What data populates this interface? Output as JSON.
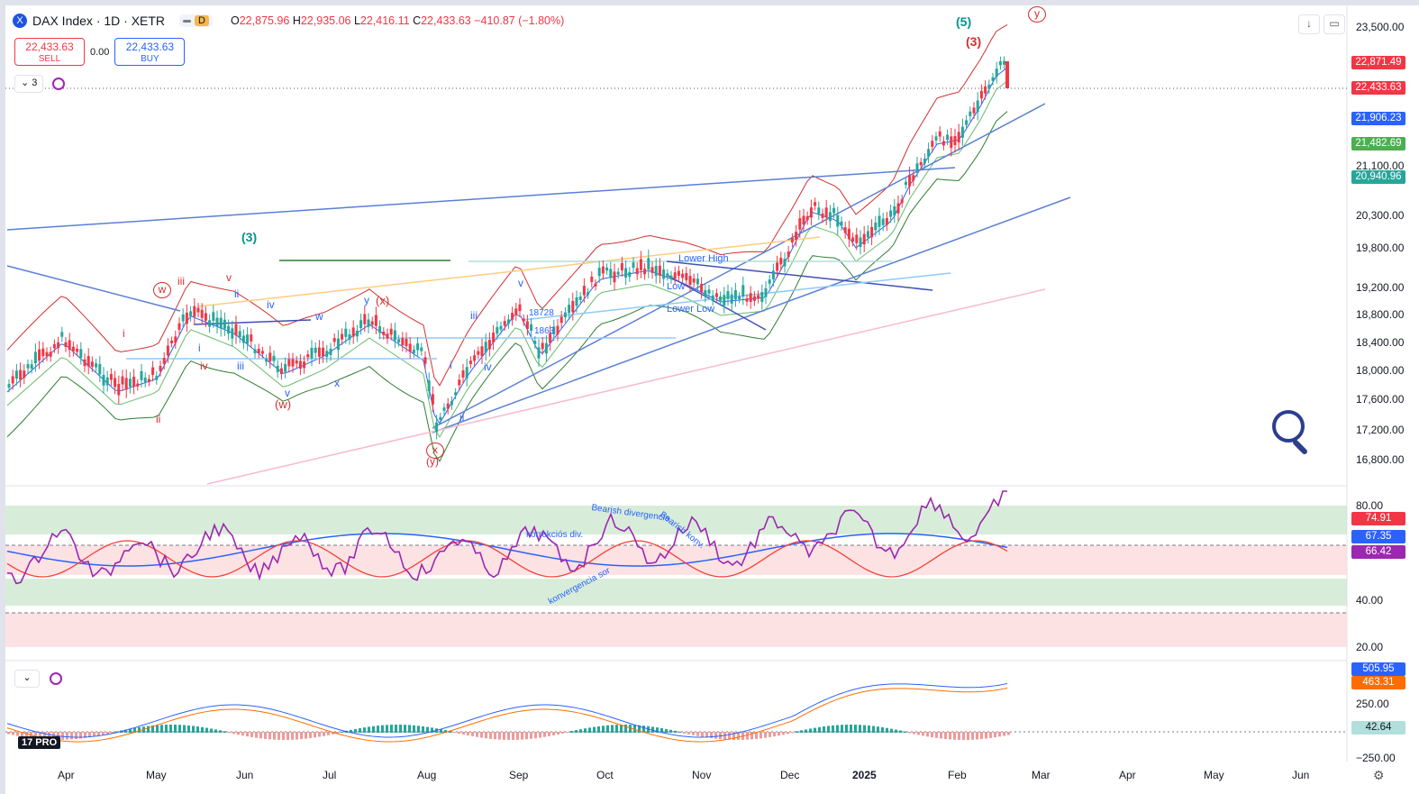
{
  "header": {
    "symbol_logo": "X",
    "title": "DAX Index · 1D · XETR",
    "interval_badge": "D",
    "ohlc": [
      {
        "k": "O",
        "v": "22,875.96"
      },
      {
        "k": "H",
        "v": "22,935.06"
      },
      {
        "k": "L",
        "v": "22,416.11"
      },
      {
        "k": "C",
        "v": "22,433.63"
      }
    ],
    "change": "−410.87 (−1.80%)"
  },
  "trade": {
    "sell_price": "22,433.63",
    "sell_label": "SELL",
    "spread": "0.00",
    "buy_price": "22,433.63",
    "buy_label": "BUY"
  },
  "collapse_count": "3",
  "price_axis": [
    "23,500.00",
    "21,100.00",
    "20,300.00",
    "19,800.00",
    "19,200.00",
    "18,800.00",
    "18,400.00",
    "18,000.00",
    "17,600.00",
    "17,200.00",
    "16,800.00"
  ],
  "price_tags": [
    {
      "text": "22,871.49",
      "color": "#f23645"
    },
    {
      "text": "22,433.63",
      "color": "#f23645"
    },
    {
      "text": "21,906.23",
      "color": "#2962ff"
    },
    {
      "text": "21,482.69",
      "color": "#4caf50"
    },
    {
      "text": "20,940.96",
      "color": "#26a69a"
    }
  ],
  "rsi_axis": [
    "80.00",
    "40.00",
    "20.00"
  ],
  "rsi_tags": [
    {
      "text": "74.91",
      "color": "#f23645"
    },
    {
      "text": "67.35",
      "color": "#2962ff"
    },
    {
      "text": "66.42",
      "color": "#9c27b0"
    }
  ],
  "macd_axis": [
    "250.00",
    "−250.00"
  ],
  "macd_tags": [
    {
      "text": "505.95",
      "color": "#2962ff"
    },
    {
      "text": "463.31",
      "color": "#ff6d00"
    },
    {
      "text": "42.64",
      "color": "#b2dfdb"
    }
  ],
  "months": [
    "Apr",
    "May",
    "Jun",
    "Jul",
    "Aug",
    "Sep",
    "Oct",
    "Nov",
    "Dec",
    "2025",
    "Feb",
    "Mar",
    "Apr",
    "May",
    "Jun"
  ],
  "waves": {
    "w5": "(5)",
    "w3r": "(3)",
    "wy_top": "y",
    "w3g": "(3)",
    "w_circ": "w",
    "x_circ": "x",
    "y_bot": "(y)",
    "ww": "(w)",
    "wx": "(x)"
  },
  "annotations": {
    "lower_high": "Lower High",
    "low": "Low",
    "lower_low": "Lower Low",
    "n18728": "18728",
    "n1863": "1863",
    "korrekcios": "korrekciós div.",
    "bearish_div": "Bearish divergencia",
    "bearish_konv": "Bearish konv.",
    "konvergencia": "konvergencia sor"
  },
  "small_labels": {
    "iii_r": "iii",
    "i_r": "i",
    "ii_r": "ii",
    "iv_r": "iv",
    "v_r": "v",
    "ii_b": "ii",
    "i_b": "i",
    "iv_b": "iv",
    "iii_b": "iii",
    "v_b": "v",
    "x_b": "x",
    "w_b": "w",
    "y_b": "y",
    "iii_b2": "iii",
    "iv_b2": "iv",
    "i_b2": "i",
    "ii_b2": "ii",
    "v_b2": "v"
  },
  "logo_text": "PRO",
  "colors": {
    "up": "#26a69a",
    "down": "#f23645",
    "rsi": "#9c27b0",
    "rsi_ma": "#f44336",
    "blue": "#2962ff"
  }
}
